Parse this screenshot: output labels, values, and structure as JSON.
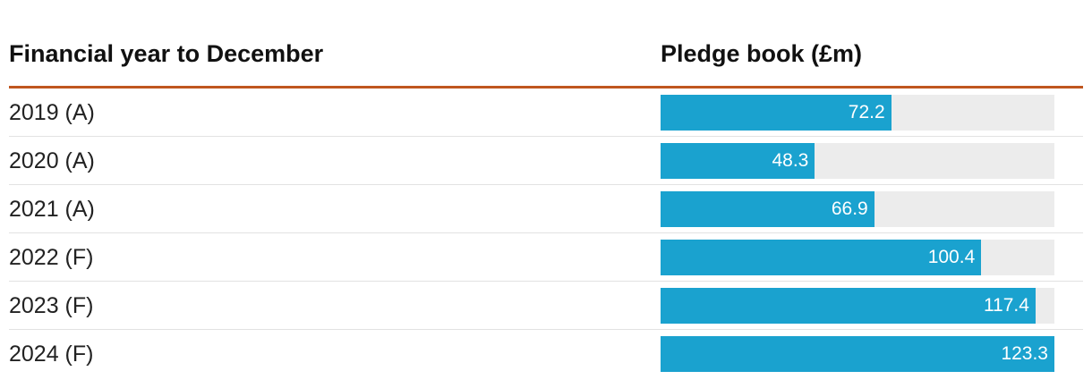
{
  "header": {
    "label_column": "Financial year to December",
    "value_column": "Pledge book (£m)"
  },
  "colors": {
    "bar": "#1aa2cf",
    "track": "#ececec",
    "header_rule": "#c0561f"
  },
  "chart_data": {
    "type": "bar",
    "orientation": "horizontal",
    "categories": [
      "2019 (A)",
      "2020 (A)",
      "2021 (A)",
      "2022 (F)",
      "2023 (F)",
      "2024 (F)"
    ],
    "values": [
      72.2,
      48.3,
      66.9,
      100.4,
      117.4,
      123.3
    ],
    "value_labels": [
      "72.2",
      "48.3",
      "66.9",
      "100.4",
      "117.4",
      "123.3"
    ],
    "xlim": [
      0,
      123.3
    ],
    "grid": false,
    "legend": "none"
  }
}
